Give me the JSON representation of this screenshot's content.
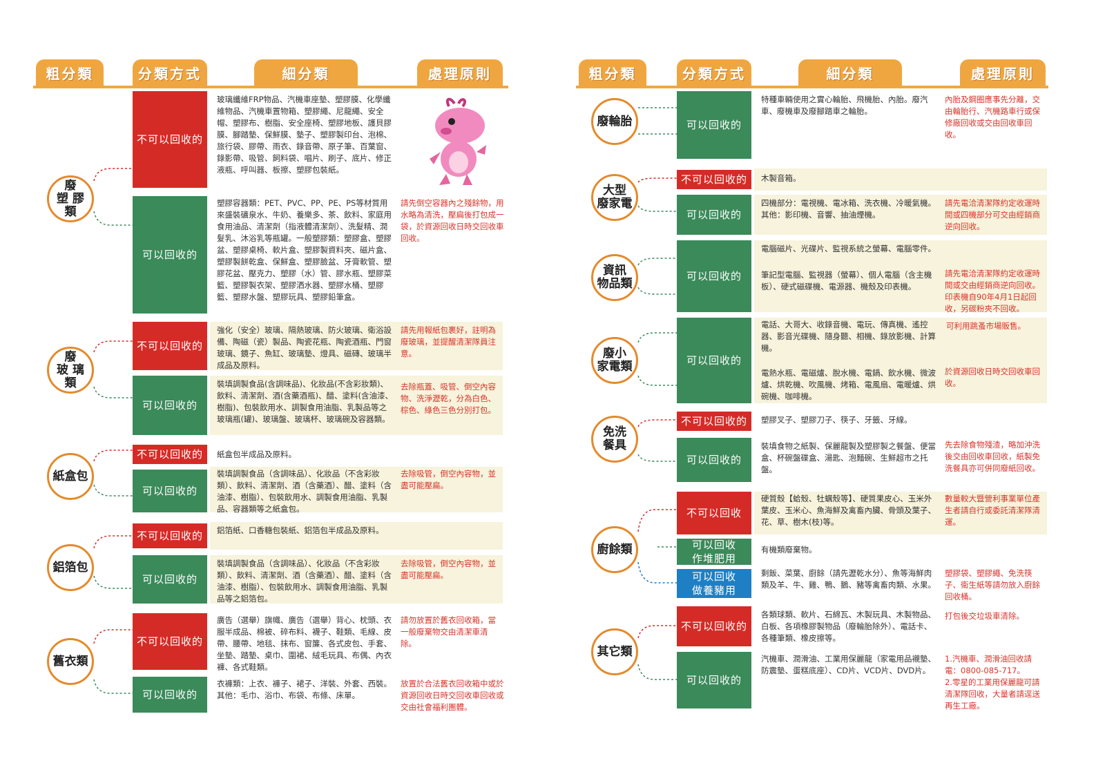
{
  "headers": {
    "left": [
      "粗分類",
      "分類方式",
      "細分類",
      "處理原則"
    ],
    "right": [
      "粗分類",
      "分類方式",
      "細分類",
      "處理原則"
    ]
  },
  "labels": {
    "non_recyclable": "不可以回收的",
    "recyclable": "可以回收的",
    "food_non": "不可以回收",
    "food_compost": "可以回收\n作堆肥用",
    "food_pig": "可以回收\n做養豬用"
  },
  "categories": {
    "plastic": "廢\n塑 膠\n類",
    "glass": "廢\n玻 璃\n類",
    "carton": "紙盒包",
    "foil": "鋁箔包",
    "clothes": "舊衣類",
    "tire": "廢輪胎",
    "appliance": "大型\n廢家電",
    "info": "資訊\n物品類",
    "small_appl": "廢小\n家電類",
    "tableware": "免洗\n餐具",
    "kitchen": "廚餘類",
    "other": "其它類"
  },
  "details": {
    "plastic_non": "玻璃纖維FRP物品、汽機車座墊、塑膠膜、化學纖維物品、汽機車置物箱、塑膠繩、尼龍繩、安全帽、塑膠布、樹脂、安全座椅、塑膠地板、護貝膠膜、腳踏墊、保鮮膜、墊子、塑膠製印台、泡棉、旅行袋、膠帶、雨衣、錄音帶、原子筆、百葉窗、錄影帶、吸管、飼料袋、唱片、刷子、底片、修正液瓶、呼叫器、板擦、塑膠包裝紙。",
    "plastic_rec": "塑膠容器類：PET、PVC、PP、PE、PS等材質用來盛裝礦泉水、牛奶、養樂多、茶、飲料、家庭用食用油品、清潔劑（指液體清潔劑）、洗髮精、潤髮乳、沐浴乳等瓶罐。一般塑膠類：塑膠盒、塑膠盆、塑膠桌椅、軟片盒、塑膠製資料夾、磁片盒、塑膠製餅乾盒、保鮮盒、塑膠臉盆、牙膏軟管、塑膠花盆、壓克力、塑膠（水）管、膠水瓶、塑膠菜籃、塑膠製衣架、塑膠洒水器、塑膠水桶、塑膠籃、塑膠水盤、塑膠玩具、塑膠鉛筆盒。",
    "plastic_note": "請先倒空容器內之殘餘物，用水略為清洗，壓扁後打包成一袋，於資源回收日時交回收車回收。",
    "glass_non": "強化（安全）玻璃、隔熱玻璃、防火玻璃、衛浴設備、陶磁（瓷）製品、陶瓷花瓶、陶瓷酒瓶、門窗玻璃、鏡子、魚缸、玻璃墊、燈具、磁磚、玻璃半成品及原料。",
    "glass_non_note": "請先用報紙包裹好，註明為廢玻璃，並提醒清潔隊員注意。",
    "glass_rec": "裝填調製食品(含調味品)、化妝品(不含彩妝類)、飲料、清潔劑、酒(含藥酒瓶)、醋、塗料(含油漆、樹脂)、包裝飲用水、調製食用油脂、乳製品等之玻璃瓶(罐)、玻璃盤、玻璃杯、玻璃碗及容器類。",
    "glass_rec_note": "去除瓶蓋、吸管、倒空內容物、洗淨瀝乾，分為白色、棕色、綠色三色分別打包。",
    "carton_non": "紙盒包半成品及原料。",
    "carton_rec": "裝填調製食品（含調味品）、化妝品（不含彩妝類）、飲料、清潔劑、酒（含藥酒）、醋、塗料（含油漆、樹脂）、包裝飲用水、調製食用油脂、乳製品、容器類等之紙盒包。",
    "carton_note": "去除吸管，倒空內容物，並盡可能壓扁。",
    "foil_non": "鋁箔紙、口香糖包裝紙、鋁箔包半成品及原料。",
    "foil_rec": "裝填調製食品（含調味品）、化妝品（不含彩妝類）、飲料、清潔劑、酒（含藥酒）、醋、塗料（含油漆、樹脂）、包裝飲用水、調製食用油脂、乳製品等之鋁箔包。",
    "foil_note": "去除吸管，倒空內容物，並盡可能壓扁。",
    "clothes_non": "廣告（選舉）旗幟、廣告（選舉）背心、枕頭、衣服半成品、棉被、碎布料、襪子、鞋類、毛線、皮帶、腰帶、地毯、抹布、窗簾、各式皮包、手套、坐墊、踏墊、桌巾、圍裙、絨毛玩具、布偶、內衣褲、各式鞋類。",
    "clothes_non_note": "請勿放置於舊衣回收箱，當一般廢棄物交由清潔車清除。",
    "clothes_rec": "衣褲類：上衣、褲子、裙子、洋裝、外套、西裝。其他：毛巾、浴巾、布袋、布條、床單。",
    "clothes_rec_note": "放置於合法舊衣回收箱中或於資源回收日時交回收車回收或交由社會福利團體。",
    "tire_rec": "特種車輛使用之實心輪胎、飛機胎、內胎。廢汽車、廢機車及廢腳踏車之輪胎。",
    "tire_note": "內胎及鋼圈應事先分離，交由輪胎行、汽機路車行或保修廠回收或交由回收車回收。",
    "appl_non": "木製音箱。",
    "appl_rec": "四機部分：電視機、電冰箱、洗衣機、冷暖氣機。其他：影印機、音響、抽油煙機。",
    "appl_note": "請先電洽清潔隊約定收運時間或四機部分可交由經銷商逆向回收。",
    "info_rec1": "電腦磁片、光碟片、監視系統之螢幕、電腦零件。",
    "info_rec2": "筆記型電腦、監視器（螢幕）、個人電腦（含主機板）、硬式磁碟機、電源器、機殼及印表機。",
    "info_note": "請先電洽清潔隊約定收運時間或交由經銷商逆向回收。印表機自90年4月1日起回收，另碳粉夾不回收。",
    "small_rec1": "電話、大哥大、收錄音機、電玩、傳真機、遙控器、影音光碟機、隨身聽、相機、錄放影機、計算機。",
    "small_note1": "可利用跳蚤市場販售。",
    "small_rec2": "電熱水瓶、電磁爐、脫水機、電鍋、飲水機、微波爐、烘乾機、吹風機、烤箱、電風扇、電暖爐、烘碗機、咖啡機。",
    "small_note2": "於資源回收日時交回收車回收。",
    "table_non": "塑膠叉子、塑膠刀子、筷子、牙籤、牙線。",
    "table_rec": "裝填食物之紙製、保麗龍製及塑膠製之餐盤、便當盒、杯碗盤碟盒、湯匙、泡麵碗、生鮮超市之托盤。",
    "table_note": "先去除食物殘渣，略加沖洗後交由回收車回收，紙製免洗餐具亦可併同廢紙回收。",
    "food_non": "硬質殼【蛤殼、牡蠣殼等】、硬質果皮心、玉米外葉皮、玉米心、魚海鮮及禽畜內臟、骨頭及葉子、花、草、樹木(枝)等。",
    "food_non_note": "數量較大暨營利事業單位產生者請自行或委託清潔隊清運。",
    "food_compost": "有機類廢棄物。",
    "food_pig": "剩飯、菜葉、廚餘（請先瀝乾水分）、魚等海鮮肉類及羊、牛、雞、鴨、鵝、豬等禽畜肉類、水果。",
    "food_pig_note": "塑膠袋、塑膠繩、免洗筷子、衛生紙等請勿放入廚餘回收桶。",
    "other_non": "各類球類、軟片、石綿瓦、木製玩具、木製物品、白板、各項橡膠製物品（廢輪胎除外）、電話卡、各種筆類、橡皮擦等。",
    "other_non_note": "打包後交垃圾車清除。",
    "other_rec": "汽機車、潤滑油、工業用保麗龍（家電用品襯墊、防震墊、蛋糕底座）、CD片、VCD片、DVD片。",
    "other_rec_note": "1.汽機車、潤滑油回收請電：0800-085-717。\n2.零星的工業用保麗龍可請清潔隊回收，大量者請逕送再生工廠。"
  },
  "colors": {
    "orange": "#f0a640",
    "red": "#d52b26",
    "green": "#3b8a5a",
    "blue": "#1e7fc4",
    "band": "#f7f3dc"
  },
  "icons": [
    "mascot-dinosaur-icon"
  ]
}
